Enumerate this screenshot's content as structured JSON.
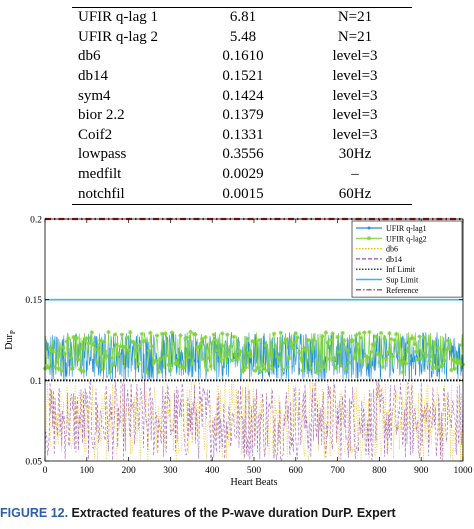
{
  "table": {
    "top_fragment": "",
    "rows": [
      [
        "UFIR q-lag 1",
        "6.81",
        "N=21"
      ],
      [
        "UFIR q-lag 2",
        "5.48",
        "N=21"
      ],
      [
        "db6",
        "0.1610",
        "level=3"
      ],
      [
        "db14",
        "0.1521",
        "level=3"
      ],
      [
        "sym4",
        "0.1424",
        "level=3"
      ],
      [
        "bior 2.2",
        "0.1379",
        "level=3"
      ],
      [
        "Coif2",
        "0.1331",
        "level=3"
      ],
      [
        "lowpass",
        "0.3556",
        "30Hz"
      ],
      [
        "medfilt",
        "0.0029",
        "–"
      ],
      [
        "notchfil",
        "0.0015",
        "60Hz"
      ]
    ]
  },
  "caption": {
    "figure": "FIGURE 12.",
    "text": " Extracted features of the P-wave duration Dur",
    "tail": "P. Expert"
  },
  "chart_data": {
    "type": "line",
    "xlabel": "Heart Beats",
    "ylabel": "Dur",
    "ylabel_sub": "P",
    "xlim": [
      0,
      1000
    ],
    "ylim": [
      0.05,
      0.2
    ],
    "xticks": [
      "0",
      "100",
      "200",
      "300",
      "400",
      "500",
      "600",
      "700",
      "800",
      "900",
      "1000"
    ],
    "yticks": [
      "0.05",
      "0.1",
      "0.15",
      "0.2"
    ],
    "legend_position": "top-right",
    "series": [
      {
        "name": "UFIR q-lag1",
        "color": "#1f8fd6",
        "style": "solid-dot",
        "approx_range": [
          0.1,
          0.13
        ]
      },
      {
        "name": "UFIR q-lag2",
        "color": "#7fd43a",
        "style": "star",
        "approx_range": [
          0.105,
          0.13
        ]
      },
      {
        "name": "db6",
        "color": "#f2b705",
        "style": "dotted",
        "approx_range": [
          0.05,
          0.1
        ]
      },
      {
        "name": "db14",
        "color": "#9b4fb0",
        "style": "dashed",
        "approx_range": [
          0.05,
          0.1
        ]
      },
      {
        "name": "Inf Limit",
        "color": "#000000",
        "style": "dotted",
        "value": 0.1
      },
      {
        "name": "Sup Limit",
        "color": "#37b8ea",
        "style": "solid",
        "value": 0.15
      },
      {
        "name": "Reference",
        "color": "#b01e1e",
        "style": "dashdot",
        "value": 0.2
      }
    ]
  }
}
